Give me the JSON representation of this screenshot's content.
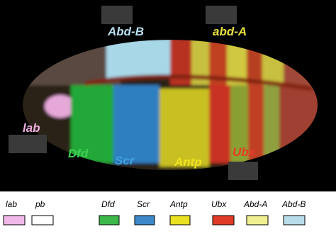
{
  "image_labels": [
    "Abd-B",
    "abd-A",
    "lab",
    "Dfd",
    "Scr",
    "Antp",
    "Ubx"
  ],
  "legend": [
    "lab",
    "pb",
    "Dfd",
    "Scr",
    "Antp",
    "Ubx",
    "Abd-A",
    "Abd-B"
  ]
}
